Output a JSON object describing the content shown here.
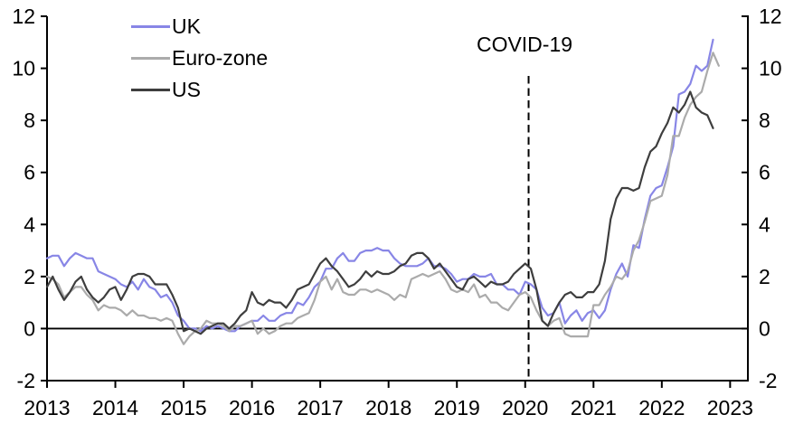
{
  "chart_data": {
    "type": "line",
    "title": "",
    "xlabel": "",
    "ylabel": "",
    "x_unit": "monthly",
    "x_start_year": 2013,
    "points_per_year": 12,
    "x_ticks": [
      2013,
      2014,
      2015,
      2016,
      2017,
      2018,
      2019,
      2020,
      2021,
      2022,
      2023
    ],
    "y_ticks": [
      -2,
      0,
      2,
      4,
      6,
      8,
      10,
      12
    ],
    "ylim": [
      -2,
      12
    ],
    "xlim": [
      2013,
      2023.26
    ],
    "grid": false,
    "zero_line": true,
    "dual_y_axis": true,
    "legend_position": "top-left-inside",
    "annotation": {
      "label": "COVID-19",
      "year": 2020.05
    },
    "series": [
      {
        "name": "UK",
        "color": "#8886E6",
        "values": [
          2.7,
          2.8,
          2.8,
          2.4,
          2.7,
          2.9,
          2.8,
          2.7,
          2.7,
          2.2,
          2.1,
          2.0,
          1.9,
          1.7,
          1.6,
          1.8,
          1.5,
          1.9,
          1.6,
          1.5,
          1.2,
          1.3,
          1.0,
          0.5,
          0.3,
          0.0,
          0.0,
          -0.1,
          0.1,
          0.0,
          0.1,
          0.0,
          -0.1,
          -0.1,
          0.1,
          0.2,
          0.3,
          0.3,
          0.5,
          0.3,
          0.3,
          0.5,
          0.6,
          0.6,
          1.0,
          0.9,
          1.2,
          1.6,
          1.8,
          2.3,
          2.3,
          2.7,
          2.9,
          2.6,
          2.6,
          2.9,
          3.0,
          3.0,
          3.1,
          3.0,
          3.0,
          2.7,
          2.5,
          2.4,
          2.4,
          2.4,
          2.5,
          2.7,
          2.4,
          2.4,
          2.3,
          2.1,
          1.8,
          1.9,
          1.9,
          2.1,
          2.0,
          2.0,
          2.1,
          1.7,
          1.7,
          1.5,
          1.5,
          1.3,
          1.8,
          1.7,
          1.5,
          0.8,
          0.5,
          0.6,
          1.0,
          0.2,
          0.5,
          0.7,
          0.3,
          0.6,
          0.7,
          0.4,
          0.7,
          1.5,
          2.1,
          2.5,
          2.0,
          3.2,
          3.1,
          4.2,
          5.1,
          5.4,
          5.5,
          6.2,
          7.0,
          9.0,
          9.1,
          9.4,
          10.1,
          9.9,
          10.1,
          11.1
        ]
      },
      {
        "name": "Euro-zone",
        "color": "#ABABAB",
        "values": [
          2.0,
          1.9,
          1.7,
          1.2,
          1.4,
          1.6,
          1.6,
          1.3,
          1.1,
          0.7,
          0.9,
          0.8,
          0.8,
          0.7,
          0.5,
          0.7,
          0.5,
          0.5,
          0.4,
          0.4,
          0.3,
          0.4,
          0.3,
          -0.2,
          -0.6,
          -0.3,
          -0.1,
          0.0,
          0.3,
          0.2,
          0.2,
          0.1,
          -0.1,
          0.1,
          0.1,
          0.2,
          0.3,
          -0.2,
          0.0,
          -0.2,
          -0.1,
          0.1,
          0.2,
          0.2,
          0.4,
          0.5,
          0.6,
          1.1,
          1.8,
          2.0,
          1.5,
          1.9,
          1.4,
          1.3,
          1.3,
          1.5,
          1.5,
          1.4,
          1.5,
          1.4,
          1.3,
          1.1,
          1.3,
          1.2,
          1.9,
          2.0,
          2.1,
          2.0,
          2.1,
          2.2,
          1.9,
          1.5,
          1.4,
          1.5,
          1.4,
          1.7,
          1.2,
          1.3,
          1.0,
          1.0,
          0.8,
          0.7,
          1.0,
          1.3,
          1.4,
          1.2,
          0.7,
          0.3,
          0.1,
          0.3,
          0.4,
          -0.2,
          -0.3,
          -0.3,
          -0.3,
          -0.3,
          0.9,
          0.9,
          1.3,
          1.6,
          2.0,
          1.9,
          2.2,
          3.0,
          3.4,
          4.1,
          4.9,
          5.0,
          5.1,
          5.9,
          7.4,
          7.4,
          8.1,
          8.6,
          8.9,
          9.1,
          9.9,
          10.6,
          10.1
        ]
      },
      {
        "name": "US",
        "color": "#3E3E3E",
        "values": [
          1.6,
          2.0,
          1.5,
          1.1,
          1.4,
          1.8,
          2.0,
          1.5,
          1.2,
          1.0,
          1.2,
          1.5,
          1.6,
          1.1,
          1.5,
          2.0,
          2.1,
          2.1,
          2.0,
          1.7,
          1.7,
          1.7,
          1.3,
          0.8,
          -0.1,
          0.0,
          -0.1,
          -0.2,
          0.0,
          0.1,
          0.2,
          0.2,
          0.0,
          0.2,
          0.5,
          0.7,
          1.4,
          1.0,
          0.9,
          1.1,
          1.0,
          1.0,
          0.8,
          1.1,
          1.5,
          1.6,
          1.7,
          2.1,
          2.5,
          2.7,
          2.4,
          2.2,
          1.9,
          1.6,
          1.7,
          1.9,
          2.2,
          2.0,
          2.2,
          2.1,
          2.1,
          2.2,
          2.4,
          2.5,
          2.8,
          2.9,
          2.9,
          2.7,
          2.3,
          2.5,
          2.2,
          1.9,
          1.6,
          1.5,
          1.9,
          2.0,
          1.8,
          1.6,
          1.8,
          1.7,
          1.7,
          1.8,
          2.1,
          2.3,
          2.5,
          2.3,
          1.5,
          0.3,
          0.1,
          0.6,
          1.0,
          1.3,
          1.4,
          1.2,
          1.2,
          1.4,
          1.4,
          1.7,
          2.6,
          4.2,
          5.0,
          5.4,
          5.4,
          5.3,
          5.4,
          6.2,
          6.8,
          7.0,
          7.5,
          7.9,
          8.5,
          8.3,
          8.6,
          9.1,
          8.5,
          8.3,
          8.2,
          7.7
        ]
      }
    ]
  },
  "colors": {
    "axis": "#000000",
    "background": "#FFFFFF",
    "text": "#000000"
  }
}
